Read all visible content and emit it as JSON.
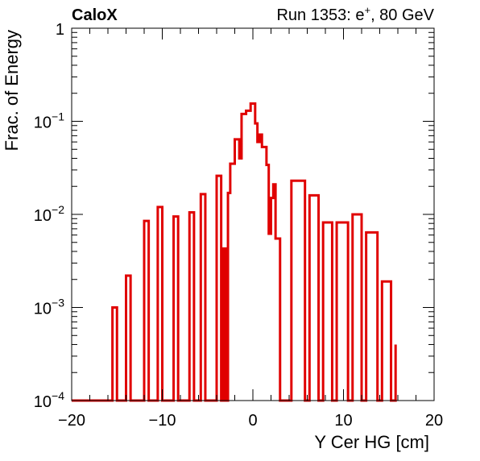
{
  "chart_data": {
    "type": "step",
    "title_left": "CaloX",
    "title_right": "Run 1353: e",
    "title_right_sup": "+",
    "title_right_suffix": ", 80 GeV",
    "xlabel": "Y Cer HG [cm]",
    "ylabel": "Frac. of Energy",
    "xlim": [
      -20,
      20
    ],
    "ylim": [
      0.0001,
      1
    ],
    "yscale": "log",
    "x_ticks": [
      "−20",
      "−10",
      "0",
      "10",
      "20"
    ],
    "y_tick_base": "10",
    "y_tick_exps": [
      "−4",
      "−3",
      "−2",
      "−1"
    ],
    "y_tick_top": "1",
    "line_color": "#e00000",
    "series": [
      {
        "bin_edges": [
          -15.5,
          -15.0,
          -14.0,
          -13.5,
          -12.0,
          -11.5,
          -10.5,
          -10.0,
          -8.75,
          -8.25,
          -7.0,
          -6.5,
          -5.75,
          -5.25,
          -4.0,
          -3.5,
          -3.25,
          -3.0,
          -2.75,
          -2.5,
          -2.0,
          -1.5,
          -1.25,
          -0.75,
          -0.25,
          0.25,
          0.5,
          0.75,
          1.0,
          1.5,
          1.75,
          2.0,
          2.25,
          2.5,
          3.0,
          3.25,
          3.75,
          4.25,
          5.75,
          6.25,
          7.25,
          7.75,
          8.75,
          9.25,
          10.5,
          11.0,
          12.0,
          12.5,
          13.75,
          14.25,
          15.25,
          15.75
        ],
        "values": [
          0.001,
          0.0001,
          0.0022,
          0.0001,
          0.0085,
          0.0001,
          0.012,
          0.0001,
          0.0095,
          0.0001,
          0.0105,
          0.0001,
          0.0165,
          0.0001,
          0.026,
          0.0001,
          0.0043,
          0.0001,
          0.017,
          0.035,
          0.064,
          0.04,
          0.12,
          0.13,
          0.155,
          0.095,
          0.06,
          0.072,
          0.053,
          0.034,
          0.0062,
          0.015,
          0.021,
          0.0055,
          0.0001,
          0.0001,
          0.0001,
          0.023,
          0.0001,
          0.016,
          0.0001,
          0.0082,
          0.0001,
          0.0082,
          0.0001,
          0.01,
          0.0001,
          0.0064,
          0.0001,
          0.0019,
          0.0001,
          0.0004
        ]
      }
    ]
  }
}
